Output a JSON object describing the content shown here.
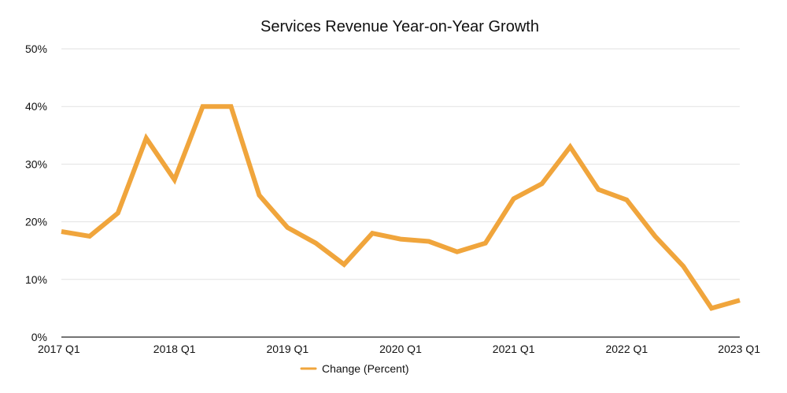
{
  "chart_data": {
    "type": "line",
    "title": "Services Revenue Year-on-Year Growth",
    "xlabel": "",
    "ylabel": "",
    "ylim": [
      0,
      50
    ],
    "yticks": [
      "0%",
      "10%",
      "20%",
      "30%",
      "40%",
      "50%"
    ],
    "xtick_labels": [
      "2017 Q1",
      "2018 Q1",
      "2019 Q1",
      "2020 Q1",
      "2021 Q1",
      "2022 Q1",
      "2023 Q1"
    ],
    "categories": [
      "2017 Q1",
      "2017 Q2",
      "2017 Q3",
      "2017 Q4",
      "2018 Q1",
      "2018 Q2",
      "2018 Q3",
      "2018 Q4",
      "2019 Q1",
      "2019 Q2",
      "2019 Q3",
      "2019 Q4",
      "2020 Q1",
      "2020 Q2",
      "2020 Q3",
      "2020 Q4",
      "2021 Q1",
      "2021 Q2",
      "2021 Q3",
      "2021 Q4",
      "2022 Q1",
      "2022 Q2",
      "2022 Q3",
      "2022 Q4",
      "2023 Q1"
    ],
    "series": [
      {
        "name": "Change (Percent)",
        "color": "#f0a53c",
        "values": [
          18.3,
          17.5,
          21.5,
          34.5,
          27.3,
          40.0,
          40.0,
          24.6,
          19.0,
          16.3,
          12.6,
          18.0,
          17.0,
          16.6,
          14.8,
          16.3,
          24.0,
          26.6,
          33.0,
          25.6,
          23.8,
          17.5,
          12.3,
          5.0,
          6.4
        ]
      }
    ],
    "grid": true,
    "legend_position": "bottom-center"
  }
}
